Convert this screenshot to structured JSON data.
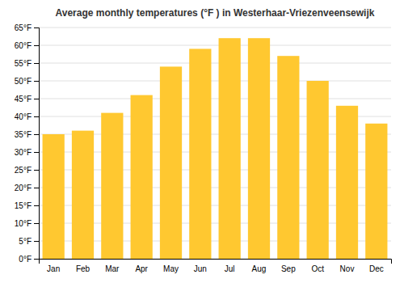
{
  "chart_data": {
    "type": "bar",
    "title": "Average monthly temperatures (°F ) in Westerhaar-Vriezenveensewijk",
    "categories": [
      "Jan",
      "Feb",
      "Mar",
      "Apr",
      "May",
      "Jun",
      "Jul",
      "Aug",
      "Sep",
      "Oct",
      "Nov",
      "Dec"
    ],
    "values": [
      35,
      36,
      41,
      46,
      54,
      59,
      62,
      62,
      57,
      50,
      43,
      38
    ],
    "color": "#FFC830",
    "ylim": [
      0,
      65
    ],
    "yticks": [
      {
        "value": 0,
        "label": "0°F"
      },
      {
        "value": 5,
        "label": "5°F"
      },
      {
        "value": 10,
        "label": "10°F"
      },
      {
        "value": 15,
        "label": "15°F"
      },
      {
        "value": 20,
        "label": "20°F"
      },
      {
        "value": 25,
        "label": "25°F"
      },
      {
        "value": 30,
        "label": "30°F"
      },
      {
        "value": 35,
        "label": "35°F"
      },
      {
        "value": 40,
        "label": "40°F"
      },
      {
        "value": 45,
        "label": "45°F"
      },
      {
        "value": 50,
        "label": "50°F"
      },
      {
        "value": 55,
        "label": "55°F"
      },
      {
        "value": 60,
        "label": "60°F"
      },
      {
        "value": 65,
        "label": "65°F"
      }
    ],
    "grid": true
  }
}
